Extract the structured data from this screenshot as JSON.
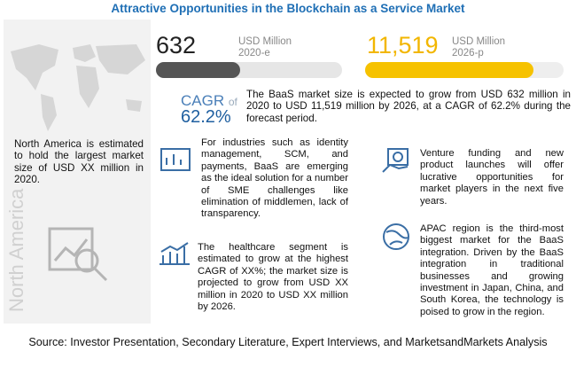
{
  "title": "Attractive Opportunities in the Blockchain as a Service Market",
  "stats": [
    {
      "value": "632",
      "unit": "USD Million",
      "period": "2020-e"
    },
    {
      "value": "11,519",
      "unit": "USD Million",
      "period": "2026-p"
    }
  ],
  "cagr": {
    "label": "CAGR",
    "suffix": "of",
    "value": "62.2%"
  },
  "summary": "The BaaS market size is expected to grow from USD 632 million in 2020 to USD 11,519 million by 2026, at a CAGR of 62.2% during the forecast period.",
  "left_panel": {
    "region": "North America",
    "text": "North America is estimated to hold the largest market size of USD XX million in 2020."
  },
  "insights": [
    "For industries such as identity management, SCM, and payments, BaaS are emerging as the ideal solution for a number of SME challenges like elimination of middlemen, lack of transparency.",
    "The healthcare segment is estimated to grow at the highest CAGR of XX%; the market size is projected to grow from USD XX million in 2020 to USD XX million by 2026.",
    "Venture funding and new product launches will offer lucrative opportunities for market players in the next five years.",
    "APAC region is the third-most biggest market for the BaaS integration. Driven by the BaaS integration in traditional businesses and growing investment in Japan, China, and South Korea, the technology is poised to grow in the region."
  ],
  "source": "Source: Investor Presentation, Secondary Literature, Expert Interviews, and MarketsandMarkets Analysis"
}
